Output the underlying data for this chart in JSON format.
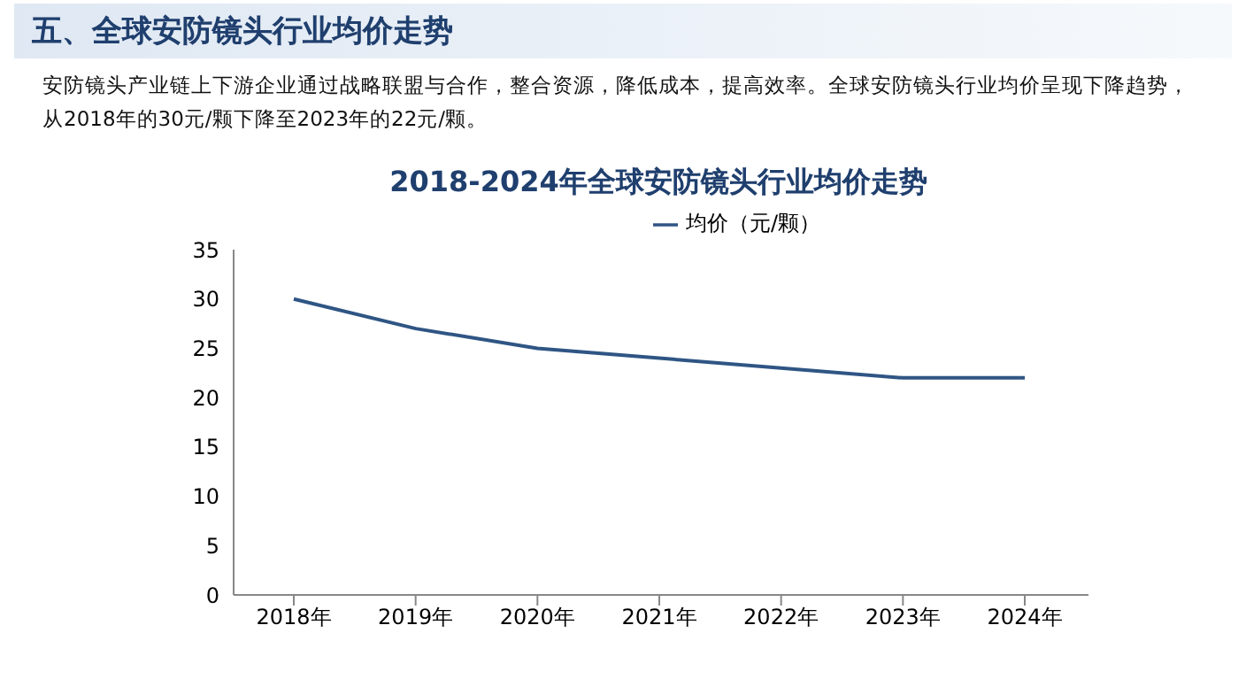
{
  "chart_data": {
    "type": "line",
    "title": "2018-2024年全球安防镜头行业均价走势",
    "annotations": [
      "五、全球安防镜头行业均价走势",
      "安防镜头产业链上下游企业通过战略联盟与合作，整合资源，降低成本，提高效率。全球安防镜头行业均价呈现下降趋势，从2018年的30元/颗下降至2023年的22元/颗。"
    ],
    "categories": [
      "2018年",
      "2019年",
      "2020年",
      "2021年",
      "2022年",
      "2023年",
      "2024年"
    ],
    "series": [
      {
        "name": "均价（元/颗）",
        "color": "#2f5584",
        "values": [
          30,
          27,
          25,
          24,
          23,
          22,
          22
        ]
      }
    ],
    "ylim": [
      0,
      35
    ],
    "yticks": [
      0,
      5,
      10,
      15,
      20,
      25,
      30,
      35
    ],
    "grid": false,
    "legend": "top",
    "marker": "none",
    "line_style": "solid"
  }
}
